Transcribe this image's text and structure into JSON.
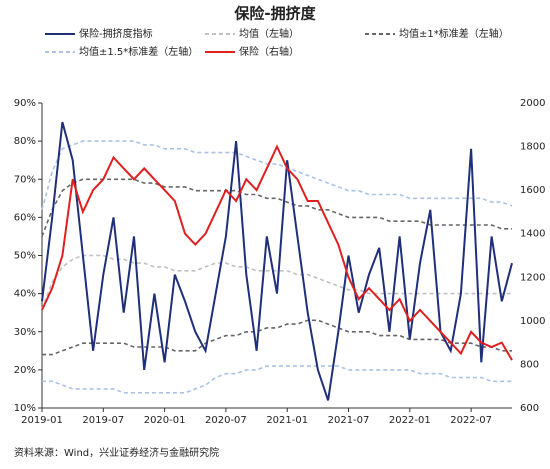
{
  "chart_data": {
    "type": "line",
    "title": "保险-拥挤度",
    "source": "资料来源：Wind，兴业证券经济与金融研究院",
    "x": [
      "2019-01",
      null,
      null,
      null,
      null,
      null,
      "2019-07",
      null,
      null,
      null,
      null,
      null,
      "2020-01",
      null,
      null,
      null,
      null,
      null,
      "2020-07",
      null,
      null,
      null,
      null,
      null,
      "2021-01",
      null,
      null,
      null,
      null,
      null,
      "2021-07",
      null,
      null,
      null,
      null,
      null,
      "2022-01",
      null,
      null,
      null,
      null,
      null,
      "2022-07",
      null,
      null,
      null,
      null
    ],
    "ylim": [
      10,
      90
    ],
    "yticks": [
      {
        "value": 10,
        "label": "10%"
      },
      {
        "value": 20,
        "label": "20%"
      },
      {
        "value": 30,
        "label": "30%"
      },
      {
        "value": 40,
        "label": "40%"
      },
      {
        "value": 50,
        "label": "50%"
      },
      {
        "value": 60,
        "label": "60%"
      },
      {
        "value": 70,
        "label": "70%"
      },
      {
        "value": 80,
        "label": "80%"
      },
      {
        "value": 90,
        "label": "90%"
      }
    ],
    "y2lim": [
      600,
      2000
    ],
    "y2ticks": [
      600,
      800,
      1000,
      1200,
      1400,
      1600,
      1800,
      2000
    ],
    "series": [
      {
        "name": "保险-拥挤度指标",
        "color": "#1f2f7a",
        "dashed": false,
        "values": [
          38,
          60,
          85,
          75,
          50,
          25,
          45,
          60,
          35,
          55,
          20,
          40,
          22,
          45,
          38,
          30,
          25,
          40,
          55,
          80,
          45,
          25,
          55,
          40,
          75,
          55,
          35,
          20,
          12,
          30,
          50,
          35,
          45,
          52,
          30,
          55,
          28,
          48,
          62,
          30,
          25,
          40,
          78,
          22,
          55,
          38,
          48
        ]
      },
      {
        "name": "均值（左轴）",
        "color": "#c0c0c0",
        "dashed": true,
        "values": [
          36,
          43,
          47,
          49,
          50,
          50,
          50,
          49,
          49,
          48,
          48,
          47,
          47,
          46,
          46,
          46,
          47,
          48,
          48,
          47,
          47,
          46,
          46,
          46,
          46,
          45,
          45,
          44,
          43,
          42,
          41,
          41,
          40,
          40,
          40,
          40,
          40,
          40,
          40,
          40,
          40,
          40,
          40,
          40,
          40,
          40,
          40
        ]
      },
      {
        "name": "均值±1*标准差（左轴）",
        "color": "#666666",
        "dashed": true,
        "values": [
          55,
          62,
          67,
          69,
          70,
          70,
          70,
          70,
          70,
          70,
          69,
          69,
          68,
          68,
          68,
          67,
          67,
          67,
          67,
          67,
          66,
          66,
          65,
          65,
          64,
          63,
          63,
          62,
          62,
          61,
          60,
          60,
          60,
          60,
          59,
          59,
          59,
          59,
          58,
          58,
          58,
          58,
          58,
          58,
          58,
          57,
          57
        ],
        "lower": [
          24,
          24,
          25,
          26,
          27,
          27,
          27,
          27,
          27,
          26,
          26,
          26,
          26,
          25,
          25,
          25,
          27,
          28,
          29,
          29,
          30,
          30,
          31,
          31,
          32,
          32,
          33,
          33,
          32,
          31,
          30,
          30,
          30,
          29,
          29,
          29,
          28,
          28,
          28,
          28,
          27,
          27,
          27,
          26,
          26,
          25,
          25
        ]
      },
      {
        "name": "均值±1.5*标准差（左轴）",
        "color": "#a9c2e6",
        "dashed": true,
        "values": [
          62,
          72,
          78,
          79,
          80,
          80,
          80,
          80,
          80,
          80,
          79,
          79,
          78,
          78,
          78,
          77,
          77,
          77,
          77,
          77,
          76,
          75,
          74,
          74,
          73,
          72,
          71,
          70,
          69,
          68,
          67,
          67,
          66,
          66,
          66,
          66,
          65,
          65,
          65,
          65,
          65,
          65,
          65,
          65,
          64,
          64,
          63
        ],
        "lower": [
          17,
          17,
          16,
          15,
          15,
          15,
          15,
          15,
          14,
          14,
          14,
          14,
          14,
          14,
          14,
          15,
          16,
          18,
          19,
          19,
          20,
          20,
          21,
          21,
          21,
          21,
          21,
          21,
          21,
          21,
          20,
          20,
          20,
          20,
          20,
          20,
          20,
          19,
          19,
          19,
          18,
          18,
          18,
          18,
          17,
          17,
          17
        ]
      },
      {
        "name": "保险（右轴）",
        "color": "#e02020",
        "dashed": false,
        "axis": "y2",
        "values": [
          1050,
          1150,
          1300,
          1650,
          1500,
          1600,
          1650,
          1750,
          1700,
          1650,
          1700,
          1650,
          1600,
          1550,
          1400,
          1350,
          1400,
          1500,
          1600,
          1550,
          1650,
          1600,
          1700,
          1800,
          1700,
          1650,
          1550,
          1550,
          1450,
          1350,
          1200,
          1100,
          1150,
          1100,
          1050,
          1100,
          1000,
          1050,
          1000,
          950,
          900,
          850,
          950,
          900,
          880,
          900,
          820
        ]
      }
    ]
  }
}
